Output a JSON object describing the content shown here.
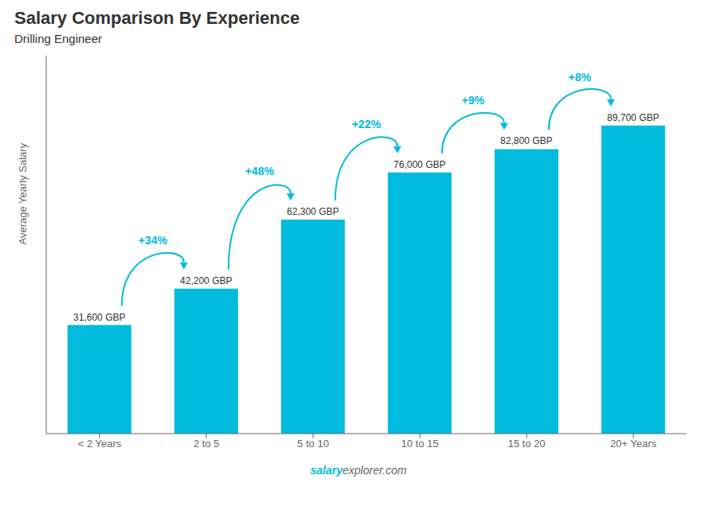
{
  "chart_data": {
    "type": "bar",
    "title": "Salary Comparison By Experience",
    "subtitle": "Drilling Engineer",
    "categories": [
      "< 2 Years",
      "2 to 5",
      "5 to 10",
      "10 to 15",
      "15 to 20",
      "20+ Years"
    ],
    "values": [
      31600,
      42200,
      62300,
      76000,
      82800,
      89700
    ],
    "value_labels": [
      "31,600 GBP",
      "42,200 GBP",
      "62,300 GBP",
      "76,000 GBP",
      "82,800 GBP",
      "89,700 GBP"
    ],
    "data_labels": true,
    "annotations": [
      "+34%",
      "+48%",
      "+22%",
      "+9%",
      "+8%"
    ],
    "ylabel": "Average Yearly Salary",
    "watermark": [
      "salary",
      "explorer.com"
    ],
    "color": "#00BBDD",
    "ylim": [
      0,
      110000
    ],
    "tick_labels": "x",
    "grid": false
  }
}
